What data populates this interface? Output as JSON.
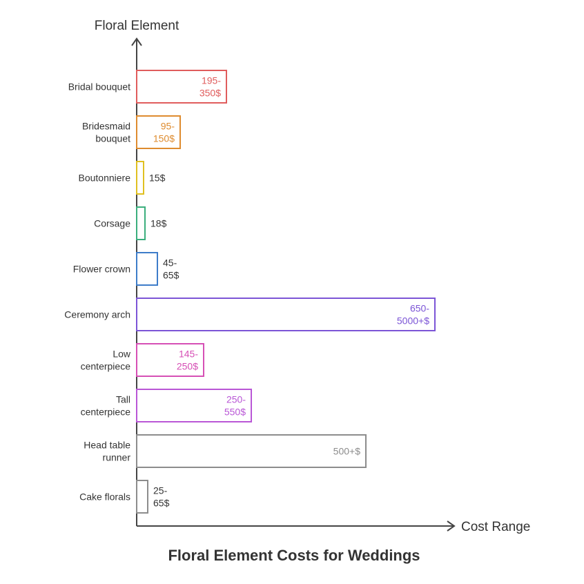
{
  "chart_data": {
    "type": "bar",
    "orientation": "horizontal",
    "title": "Floral Element Costs for Weddings",
    "xlabel": "Cost Range",
    "ylabel": "Floral Element",
    "categories": [
      "Bridal bouquet",
      "Bridesmaid bouquet",
      "Boutonniere",
      "Corsage",
      "Flower crown",
      "Ceremony arch",
      "Low centerpiece",
      "Tall centerpiece",
      "Head table runner",
      "Cake florals"
    ],
    "value_labels": [
      "195-350$",
      "95-150$",
      "15$",
      "18$",
      "45-65$",
      "650-5000+$",
      "145-250$",
      "250-550$",
      "500+$",
      "25-65$"
    ],
    "values": [
      130,
      63,
      10,
      12,
      30,
      432,
      97,
      166,
      332,
      16
    ],
    "colors": [
      "#e05c5c",
      "#de8b2e",
      "#e0c020",
      "#3aae7c",
      "#3d7cc9",
      "#7b54d6",
      "#d64fb5",
      "#b956d6",
      "#8c8c8c",
      "#8c8c8c"
    ],
    "grid": false,
    "legend": "none"
  }
}
